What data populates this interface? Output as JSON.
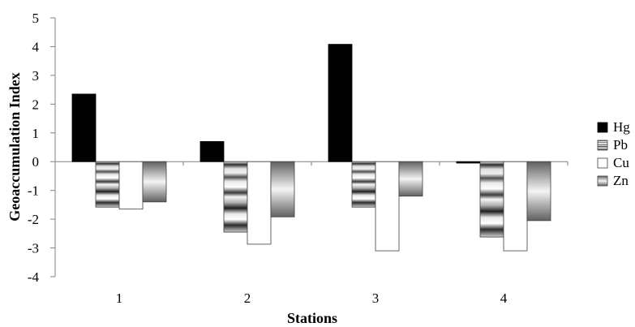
{
  "chart_data": {
    "type": "bar",
    "categories": [
      "1",
      "2",
      "3",
      "4"
    ],
    "series": [
      {
        "name": "Hg",
        "values": [
          2.35,
          0.7,
          4.08,
          -0.05
        ],
        "fill": "solid-black"
      },
      {
        "name": "Pb",
        "values": [
          -1.58,
          -2.45,
          -1.58,
          -2.62
        ],
        "fill": "banded-gray"
      },
      {
        "name": "Cu",
        "values": [
          -1.65,
          -2.87,
          -3.1,
          -3.1
        ],
        "fill": "white"
      },
      {
        "name": "Zn",
        "values": [
          -1.4,
          -1.92,
          -1.2,
          -2.05
        ],
        "fill": "gradient-gray"
      }
    ],
    "ylim": [
      -4,
      5
    ],
    "yticks": [
      "-4",
      "-3",
      "-2",
      "-1",
      "0",
      "1",
      "2",
      "3",
      "4",
      "5"
    ],
    "xlabel": "Stations",
    "ylabel": "Geoaccumulation Index",
    "legend": "right",
    "grid": false
  },
  "colors": {
    "hg": "#000000",
    "cu_fill": "#ffffff",
    "axis": "#808080",
    "bar_stroke": "#404040"
  }
}
